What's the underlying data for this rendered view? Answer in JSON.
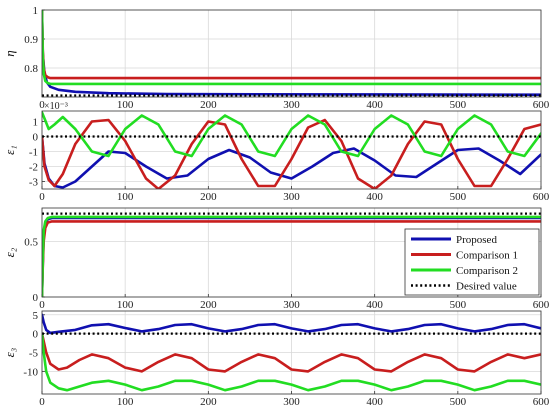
{
  "chart_data": [
    {
      "type": "line",
      "ylabel": "η",
      "xlim": [
        0,
        600
      ],
      "ylim": [
        0.7,
        1.0
      ],
      "yticks": [
        "1",
        "0.9",
        "0.8"
      ],
      "xticks": [
        "0",
        "100",
        "200",
        "300",
        "400",
        "500",
        "600"
      ],
      "grid": true,
      "series": [
        {
          "name": "Proposed",
          "color": "#1010b0",
          "x": [
            0,
            1,
            3,
            6,
            10,
            20,
            40,
            80,
            150,
            600
          ],
          "y": [
            1.0,
            0.85,
            0.78,
            0.75,
            0.735,
            0.725,
            0.718,
            0.713,
            0.71,
            0.708
          ]
        },
        {
          "name": "Comparison 1",
          "color": "#c81e1e",
          "x": [
            0,
            1,
            2,
            4,
            7,
            10,
            600
          ],
          "y": [
            1.0,
            0.86,
            0.8,
            0.775,
            0.768,
            0.765,
            0.765
          ]
        },
        {
          "name": "Comparison 2",
          "color": "#22dd22",
          "x": [
            0,
            1,
            2,
            4,
            7,
            10,
            600
          ],
          "y": [
            1.0,
            0.84,
            0.78,
            0.755,
            0.748,
            0.745,
            0.745
          ]
        },
        {
          "name": "Desired value",
          "color": "#000000",
          "x": [
            0,
            600
          ],
          "y": [
            0.705,
            0.705
          ]
        }
      ]
    },
    {
      "type": "line",
      "ylabel": "ε₁",
      "yexp": "×10⁻³",
      "xlim": [
        0,
        600
      ],
      "ylim": [
        -3.5,
        1.7
      ],
      "yticks": [
        "1",
        "0",
        "-1",
        "-2",
        "-3"
      ],
      "xticks": [
        "0",
        "100",
        "200",
        "300",
        "400",
        "500",
        "600"
      ],
      "grid": true,
      "series": [
        {
          "name": "Proposed",
          "color": "#1010b0",
          "x": [
            0,
            3,
            8,
            15,
            25,
            40,
            60,
            80,
            100,
            125,
            150,
            175,
            200,
            225,
            250,
            275,
            300,
            325,
            350,
            375,
            400,
            425,
            450,
            475,
            500,
            525,
            550,
            575,
            600
          ],
          "y": [
            0,
            -1.8,
            -2.8,
            -3.3,
            -3.4,
            -3.0,
            -2.0,
            -1.0,
            -1.1,
            -2.0,
            -2.8,
            -2.6,
            -1.5,
            -0.9,
            -1.4,
            -2.4,
            -2.8,
            -2.0,
            -1.1,
            -0.8,
            -1.6,
            -2.6,
            -2.7,
            -1.8,
            -0.9,
            -0.8,
            -1.6,
            -2.5,
            -1.2
          ]
        },
        {
          "name": "Comparison 1",
          "color": "#c81e1e",
          "x": [
            0,
            3,
            8,
            15,
            25,
            40,
            60,
            80,
            100,
            125,
            140,
            160,
            180,
            200,
            220,
            240,
            260,
            280,
            300,
            320,
            340,
            360,
            380,
            400,
            420,
            440,
            460,
            480,
            500,
            520,
            540,
            560,
            580,
            600
          ],
          "y": [
            0,
            -2.0,
            -2.9,
            -3.3,
            -2.5,
            -0.5,
            1.0,
            1.1,
            -0.3,
            -2.8,
            -3.5,
            -2.6,
            -0.5,
            1.0,
            0.8,
            -1.5,
            -3.3,
            -3.3,
            -1.5,
            0.6,
            1.1,
            -0.3,
            -2.8,
            -3.5,
            -2.6,
            -0.5,
            1.0,
            0.8,
            -1.5,
            -3.3,
            -3.3,
            -1.5,
            0.5,
            0.8
          ]
        },
        {
          "name": "Comparison 2",
          "color": "#22dd22",
          "x": [
            0,
            3,
            8,
            15,
            25,
            40,
            60,
            80,
            100,
            120,
            140,
            160,
            180,
            200,
            220,
            240,
            260,
            280,
            300,
            320,
            340,
            360,
            380,
            400,
            420,
            440,
            460,
            480,
            500,
            520,
            540,
            560,
            580,
            600
          ],
          "y": [
            1.6,
            1.2,
            0.5,
            0.8,
            1.3,
            0.5,
            -1.0,
            -1.3,
            0.5,
            1.4,
            0.8,
            -1.0,
            -1.3,
            0.5,
            1.4,
            0.8,
            -1.0,
            -1.3,
            0.5,
            1.4,
            0.8,
            -1.0,
            -1.3,
            0.5,
            1.4,
            0.8,
            -1.0,
            -1.3,
            0.5,
            1.4,
            0.8,
            -1.0,
            -1.3,
            0.2
          ]
        },
        {
          "name": "Desired value",
          "color": "#000000",
          "x": [
            0,
            600
          ],
          "y": [
            0,
            0
          ]
        }
      ]
    },
    {
      "type": "line",
      "ylabel": "ε₂",
      "xlim": [
        0,
        600
      ],
      "ylim": [
        0,
        0.8
      ],
      "yticks": [
        "0.5",
        "0"
      ],
      "xticks": [
        "0",
        "100",
        "200",
        "300",
        "400",
        "500",
        "600"
      ],
      "grid": true,
      "series": [
        {
          "name": "Proposed",
          "color": "#1010b0",
          "x": [
            0,
            1,
            2,
            4,
            7,
            12,
            600
          ],
          "y": [
            0,
            0.3,
            0.55,
            0.66,
            0.7,
            0.71,
            0.71
          ]
        },
        {
          "name": "Comparison 1",
          "color": "#c81e1e",
          "x": [
            0,
            1,
            2,
            4,
            7,
            12,
            600
          ],
          "y": [
            0,
            0.28,
            0.5,
            0.62,
            0.67,
            0.68,
            0.68
          ]
        },
        {
          "name": "Comparison 2",
          "color": "#22dd22",
          "x": [
            0,
            1,
            2,
            4,
            7,
            12,
            600
          ],
          "y": [
            0,
            0.35,
            0.6,
            0.68,
            0.71,
            0.72,
            0.72
          ]
        },
        {
          "name": "Desired value",
          "color": "#000000",
          "x": [
            0,
            600
          ],
          "y": [
            0.75,
            0.75
          ]
        }
      ],
      "legend": {
        "placement": "bottom-right",
        "entries": [
          "Proposed",
          "Comparison 1",
          "Comparison 2",
          "Desired value"
        ]
      }
    },
    {
      "type": "line",
      "ylabel": "ε₃",
      "xlim": [
        0,
        600
      ],
      "ylim": [
        -16,
        6
      ],
      "yticks": [
        "5",
        "0",
        "-5",
        "-10"
      ],
      "xticks": [
        "0",
        "100",
        "200",
        "300",
        "400",
        "500",
        "600"
      ],
      "grid": true,
      "series": [
        {
          "name": "Proposed",
          "color": "#1010b0",
          "x": [
            0,
            2,
            5,
            10,
            20,
            40,
            60,
            80,
            100,
            120,
            140,
            160,
            180,
            200,
            220,
            240,
            260,
            280,
            300,
            320,
            340,
            360,
            380,
            400,
            420,
            440,
            460,
            480,
            500,
            520,
            540,
            560,
            580,
            600
          ],
          "y": [
            5.0,
            3.0,
            1.0,
            0.2,
            0.5,
            1.0,
            2.2,
            2.5,
            1.5,
            0.6,
            1.2,
            2.3,
            2.5,
            1.4,
            0.6,
            1.2,
            2.3,
            2.5,
            1.4,
            0.6,
            1.2,
            2.3,
            2.5,
            1.4,
            0.6,
            1.2,
            2.3,
            2.5,
            1.4,
            0.6,
            1.2,
            2.3,
            2.5,
            1.4
          ]
        },
        {
          "name": "Comparison 1",
          "color": "#c81e1e",
          "x": [
            0,
            2,
            5,
            10,
            20,
            30,
            45,
            60,
            80,
            100,
            120,
            140,
            160,
            180,
            200,
            220,
            240,
            260,
            280,
            300,
            320,
            340,
            360,
            380,
            400,
            420,
            440,
            460,
            480,
            500,
            520,
            540,
            560,
            580,
            600
          ],
          "y": [
            0,
            -2.0,
            -5.0,
            -8.0,
            -9.5,
            -9.0,
            -7.0,
            -5.5,
            -6.5,
            -9.0,
            -10.0,
            -7.5,
            -5.5,
            -6.5,
            -9.5,
            -10.0,
            -7.5,
            -5.5,
            -6.5,
            -9.5,
            -10.0,
            -7.5,
            -5.5,
            -6.5,
            -9.5,
            -10.0,
            -7.5,
            -5.5,
            -6.5,
            -9.5,
            -10.0,
            -7.5,
            -5.5,
            -6.5,
            -5.5
          ]
        },
        {
          "name": "Comparison 2",
          "color": "#22dd22",
          "x": [
            0,
            2,
            5,
            10,
            20,
            30,
            45,
            60,
            80,
            100,
            120,
            140,
            160,
            180,
            200,
            220,
            240,
            260,
            280,
            300,
            320,
            340,
            360,
            380,
            400,
            420,
            440,
            460,
            480,
            500,
            520,
            540,
            560,
            580,
            600
          ],
          "y": [
            0,
            -5.0,
            -10.0,
            -13.0,
            -14.5,
            -15.0,
            -14.0,
            -13.0,
            -12.5,
            -13.5,
            -15.0,
            -14.0,
            -12.5,
            -12.5,
            -13.5,
            -15.0,
            -14.0,
            -12.5,
            -12.5,
            -13.5,
            -15.0,
            -14.0,
            -12.5,
            -12.5,
            -13.5,
            -15.0,
            -14.0,
            -12.5,
            -12.5,
            -13.5,
            -15.0,
            -14.0,
            -12.5,
            -12.5,
            -13.5
          ]
        },
        {
          "name": "Desired value",
          "color": "#000000",
          "x": [
            0,
            600
          ],
          "y": [
            0,
            0
          ]
        }
      ]
    }
  ]
}
